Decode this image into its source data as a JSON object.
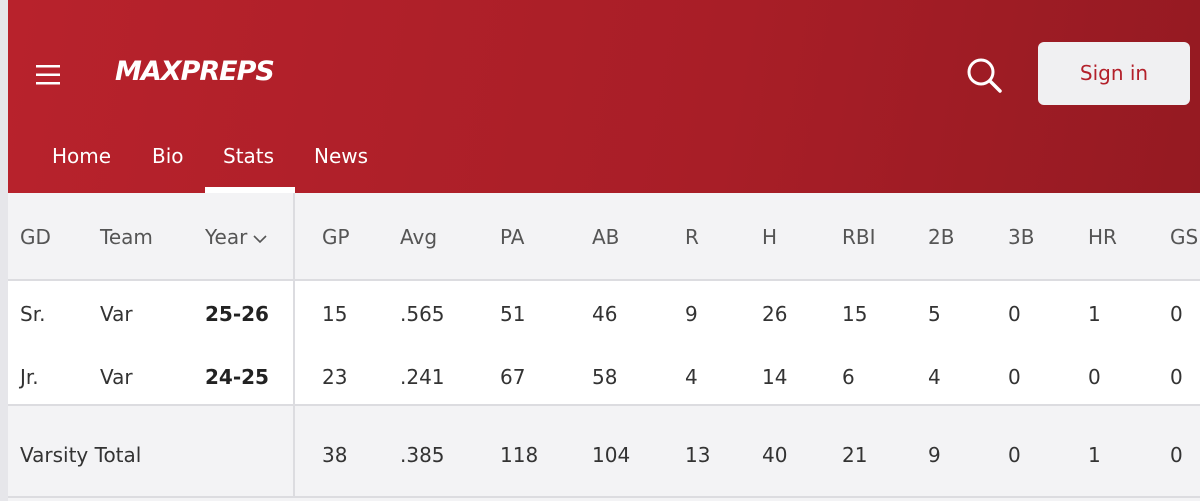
{
  "header": {
    "logo": "MAXPREPS",
    "sign_in": "Sign in"
  },
  "nav": {
    "items": [
      "Home",
      "Bio",
      "Stats",
      "News"
    ],
    "active": 2
  },
  "table": {
    "columns": [
      "GD",
      "Team",
      "Year",
      "GP",
      "Avg",
      "PA",
      "AB",
      "R",
      "H",
      "RBI",
      "2B",
      "3B",
      "HR",
      "GS"
    ],
    "rows": [
      [
        "Sr.",
        "Var",
        "25-26",
        "15",
        ".565",
        "51",
        "46",
        "9",
        "26",
        "15",
        "5",
        "0",
        "1",
        "0"
      ],
      [
        "Jr.",
        "Var",
        "24-25",
        "23",
        ".241",
        "67",
        "58",
        "4",
        "14",
        "6",
        "4",
        "0",
        "0",
        "0"
      ]
    ],
    "total": {
      "label": "Varsity Total",
      "values": [
        "38",
        ".385",
        "118",
        "104",
        "13",
        "40",
        "21",
        "9",
        "0",
        "1",
        "0"
      ]
    }
  }
}
